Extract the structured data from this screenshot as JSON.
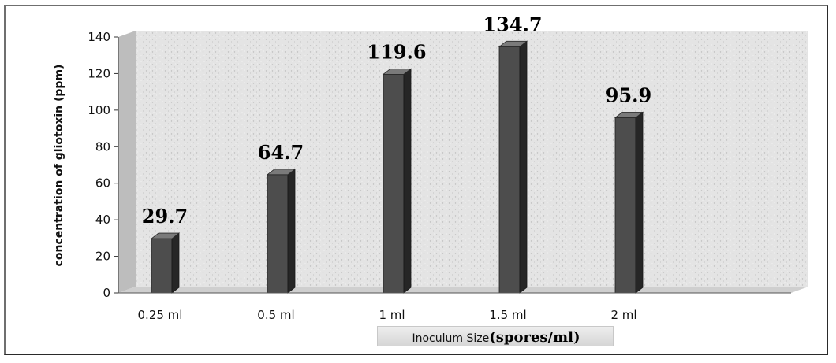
{
  "chart_data": {
    "type": "bar",
    "categories": [
      "0.25 ml",
      "0.5 ml",
      "1 ml",
      "1.5 ml",
      "2 ml"
    ],
    "values": [
      29.7,
      64.7,
      119.6,
      134.7,
      95.9
    ],
    "data_labels": [
      "29.7",
      "64.7",
      "119.6",
      "134.7",
      "95.9"
    ],
    "ylim": [
      0,
      140
    ],
    "yticks": [
      0,
      20,
      40,
      60,
      80,
      100,
      120,
      140
    ],
    "ylabel": "concentration of gliotoxin (ppm)",
    "xlabel_part1": "Inoculum Size",
    "xlabel_part2": "(spores/ml)",
    "grid": false,
    "style": "3d-column",
    "colors": {
      "bar_front": "#4d4d4d",
      "bar_side": "#262626",
      "bar_top": "#7a7a7a",
      "wall": "#e3e3e3",
      "floor": "#cfcfcf"
    }
  }
}
